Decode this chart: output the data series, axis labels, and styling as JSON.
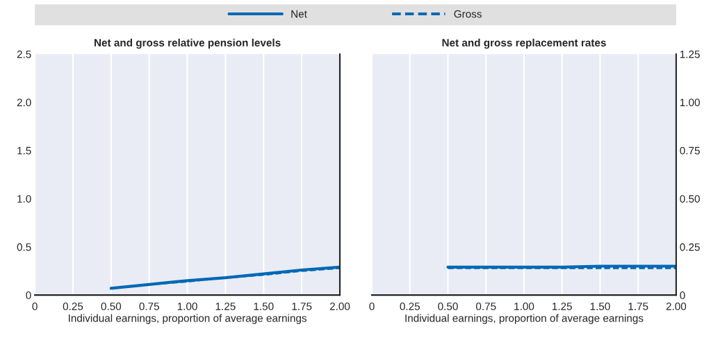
{
  "chart_data": [
    {
      "type": "line",
      "title": "Net and gross relative pension levels",
      "xlabel": "Individual earnings, proportion of average earnings",
      "x": [
        0.5,
        0.75,
        1.0,
        1.25,
        1.5,
        1.75,
        2.0
      ],
      "series": [
        {
          "name": "Net",
          "color": "#0068b5",
          "line_style": "solid",
          "values": [
            0.07,
            0.11,
            0.15,
            0.18,
            0.22,
            0.26,
            0.29
          ]
        },
        {
          "name": "Gross",
          "color": "#0068b5",
          "line_style": "dashed",
          "values": [
            0.07,
            0.11,
            0.14,
            0.18,
            0.21,
            0.25,
            0.28
          ]
        }
      ],
      "xlim": [
        0,
        2.0
      ],
      "xticks": [
        0,
        0.25,
        {
          "value": 0.5,
          "label": "0.50"
        },
        0.75,
        {
          "value": 1.0,
          "label": "1.00"
        },
        1.25,
        {
          "value": 1.5,
          "label": "1.50"
        },
        1.75,
        {
          "value": 2.0,
          "label": "2.00"
        }
      ],
      "ylim": [
        0,
        2.5
      ],
      "yticks": [
        0,
        0.5,
        {
          "value": 1.0,
          "label": "1.0"
        },
        1.5,
        {
          "value": 2.0,
          "label": "2.0"
        },
        2.5
      ],
      "grid": "x",
      "legend": "top"
    },
    {
      "type": "line",
      "title": "Net and gross replacement rates",
      "xlabel": "Individual earnings, proportion of average earnings",
      "x": [
        0.5,
        0.75,
        1.0,
        1.25,
        1.5,
        1.75,
        2.0
      ],
      "series": [
        {
          "color": "#0068b5",
          "line_style": "solid",
          "values": [
            0.145,
            0.145,
            0.145,
            0.145,
            0.15,
            0.15,
            0.15
          ]
        },
        {
          "color": "#0068b5",
          "line_style": "dashed",
          "values": [
            0.14,
            0.14,
            0.14,
            0.14,
            0.14,
            0.14,
            0.14
          ]
        }
      ],
      "xlim": [
        0,
        2.0
      ],
      "xticks": [
        0,
        0.25,
        {
          "value": 0.5,
          "label": "0.50"
        },
        0.75,
        {
          "value": 1.0,
          "label": "1.00"
        },
        1.25,
        {
          "value": 1.5,
          "label": "1.50"
        },
        1.75,
        {
          "value": 2.0,
          "label": "2.00"
        }
      ],
      "ylim": [
        0,
        1.25
      ],
      "yticks": [
        0,
        0.25,
        {
          "value": 0.5,
          "label": "0.50"
        },
        0.75,
        {
          "value": 1.0,
          "label": "1.00"
        },
        1.25
      ],
      "grid": "x",
      "legend": "top"
    }
  ]
}
